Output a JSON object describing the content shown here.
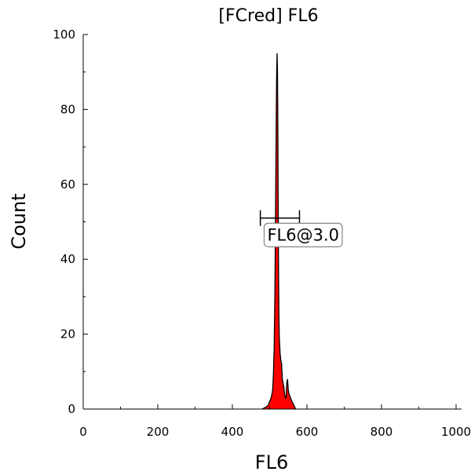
{
  "chart_data": {
    "type": "histogram",
    "title": "[FCred] FL6",
    "xlabel": "FL6",
    "ylabel": "Count",
    "xlim": [
      0,
      1000
    ],
    "ylim": [
      0,
      100
    ],
    "x_ticks": [
      0,
      200,
      400,
      600,
      800,
      1000
    ],
    "y_ticks": [
      0,
      20,
      40,
      60,
      80,
      100
    ],
    "grid": false,
    "legend": "none",
    "colors": {
      "gated_fill": "#ff0000",
      "outline": "#000000"
    },
    "series": [
      {
        "x": [
          480,
          490,
          496,
          500,
          504,
          508,
          510,
          512,
          514,
          516,
          518,
          519,
          520,
          521,
          522,
          523,
          524,
          525,
          526,
          528,
          530,
          532,
          534,
          536,
          538,
          540,
          542,
          544,
          546,
          548,
          550,
          552,
          556,
          560,
          565,
          570
        ],
        "values": [
          0,
          0.5,
          1,
          2,
          3,
          5,
          9,
          16,
          30,
          55,
          82,
          91,
          95,
          90,
          75,
          52,
          35,
          24,
          19,
          15,
          13,
          12,
          8,
          7,
          6,
          4,
          3,
          3,
          7,
          8,
          5,
          4,
          3,
          2,
          1,
          0
        ]
      }
    ],
    "gate": {
      "label": "FL6@3.0",
      "range": [
        475,
        580
      ],
      "y": 51,
      "label_x": 590,
      "label_y": 45
    }
  }
}
